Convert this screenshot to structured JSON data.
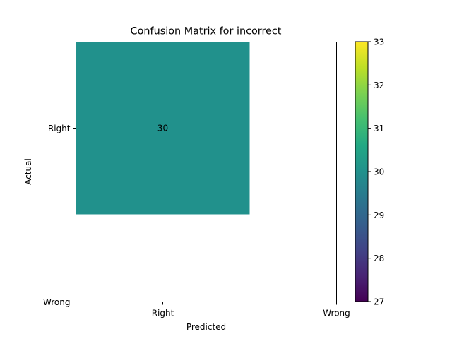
{
  "chart_data": {
    "type": "heatmap",
    "title": "Confusion Matrix for incorrect",
    "xlabel": "Predicted",
    "ylabel": "Actual",
    "x_categories": [
      "Right",
      "Wrong"
    ],
    "y_categories": [
      "Right",
      "Wrong"
    ],
    "cells": [
      {
        "actual": "Right",
        "predicted": "Right",
        "value": 30,
        "label": "30"
      }
    ],
    "colorbar": {
      "colormap": "viridis",
      "range": [
        27,
        33
      ],
      "ticks": [
        "27",
        "28",
        "29",
        "30",
        "31",
        "32",
        "33"
      ]
    },
    "colors": {
      "cell_fill": "#21918c",
      "background": "#ffffff"
    },
    "grid": false
  }
}
